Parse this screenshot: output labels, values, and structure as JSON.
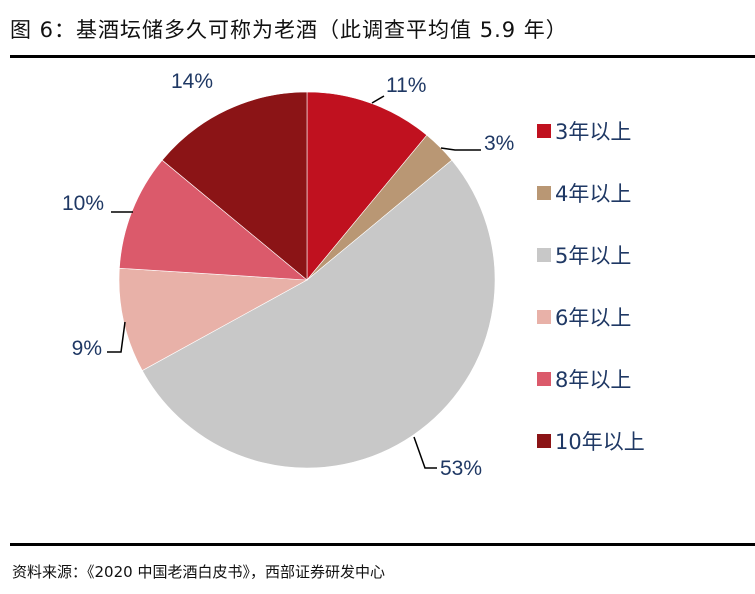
{
  "title": "图 6：基酒坛储多久可称为老酒（此调查平均值 5.9 年）",
  "source": "资料来源：《2020 中国老酒白皮书》，西部证券研发中心",
  "chart_data": {
    "type": "pie",
    "title": "图 6：基酒坛储多久可称为老酒（此调查平均值 5.9 年）",
    "categories": [
      "3年以上",
      "4年以上",
      "5年以上",
      "6年以上",
      "8年以上",
      "10年以上"
    ],
    "values": [
      11,
      3,
      53,
      9,
      10,
      14
    ],
    "labels": [
      "11%",
      "3%",
      "53%",
      "9%",
      "10%",
      "14%"
    ],
    "colors": [
      "#c0111f",
      "#b99774",
      "#c8c8c8",
      "#e8b1a8",
      "#db5a6b",
      "#8b1416"
    ],
    "start_angle": "12 o'clock, clockwise",
    "legend_position": "right"
  },
  "legend": [
    {
      "label": "3年以上",
      "color": "#c0111f"
    },
    {
      "label": "4年以上",
      "color": "#b99774"
    },
    {
      "label": "5年以上",
      "color": "#c8c8c8"
    },
    {
      "label": "6年以上",
      "color": "#e8b1a8"
    },
    {
      "label": "8年以上",
      "color": "#db5a6b"
    },
    {
      "label": "10年以上",
      "color": "#8b1416"
    }
  ]
}
